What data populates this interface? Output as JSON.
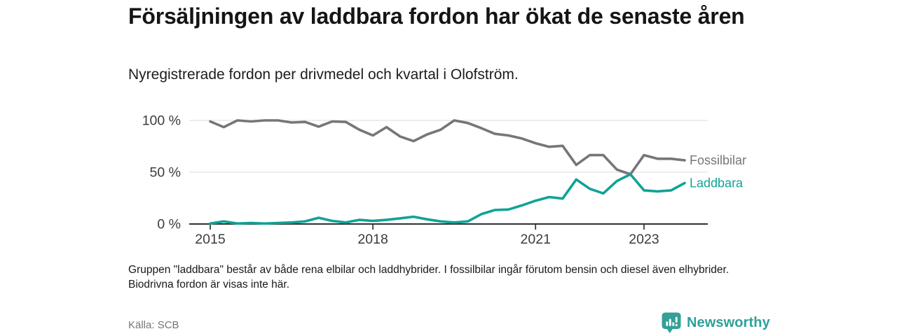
{
  "header": {
    "title": "Försäljningen av laddbara fordon har ökat de senaste åren",
    "subtitle": "Nyregistrerade fordon per drivmedel och kvartal i Olofström."
  },
  "chart_data": {
    "type": "line",
    "title": "Försäljningen av laddbara fordon har ökat de senaste åren",
    "subtitle": "Nyregistrerade fordon per drivmedel och kvartal i Olofström.",
    "x_unit": "quarter",
    "x_quarters": [
      "2015 K1",
      "2015 K2",
      "2015 K3",
      "2015 K4",
      "2016 K1",
      "2016 K2",
      "2016 K3",
      "2016 K4",
      "2017 K1",
      "2017 K2",
      "2017 K3",
      "2017 K4",
      "2018 K1",
      "2018 K2",
      "2018 K3",
      "2018 K4",
      "2019 K1",
      "2019 K2",
      "2019 K3",
      "2019 K4",
      "2020 K1",
      "2020 K2",
      "2020 K3",
      "2020 K4",
      "2021 K1",
      "2021 K2",
      "2021 K3",
      "2021 K4",
      "2022 K1",
      "2022 K2",
      "2022 K3",
      "2022 K4",
      "2023 K1",
      "2023 K2",
      "2023 K3",
      "2023 K4"
    ],
    "series": [
      {
        "name": "Fossilbilar",
        "color": "#76757B",
        "values": [
          99,
          93.5,
          100,
          99,
          100,
          100,
          98,
          98.5,
          94,
          99,
          98.5,
          91,
          85.5,
          93.5,
          84.5,
          80,
          86.5,
          91,
          100,
          97.5,
          92.5,
          87,
          85.5,
          82.5,
          78,
          74.5,
          75.5,
          57,
          66.5,
          66.5,
          52.5,
          48,
          66.5,
          63,
          63,
          61.5
        ]
      },
      {
        "name": "Laddbara",
        "color": "#10A396",
        "values": [
          0.5,
          2.5,
          0.5,
          1,
          0.5,
          1,
          1.5,
          2.5,
          6,
          3,
          1.5,
          4,
          3,
          4,
          5.5,
          7,
          4.5,
          2.5,
          1.5,
          2.5,
          9.5,
          13.5,
          14,
          18,
          22.5,
          26,
          24.5,
          43,
          34,
          29.5,
          41.5,
          48,
          32.5,
          31.5,
          32.5,
          39.5
        ]
      }
    ],
    "ylim": [
      0,
      100
    ],
    "yticks": [
      {
        "value": 0,
        "label": "0 %"
      },
      {
        "value": 50,
        "label": "50 %"
      },
      {
        "value": 100,
        "label": "100 %"
      }
    ],
    "xticks": [
      {
        "quarter_index": 0,
        "label": "2015"
      },
      {
        "quarter_index": 12,
        "label": "2018"
      },
      {
        "quarter_index": 24,
        "label": "2021"
      },
      {
        "quarter_index": 32,
        "label": "2023"
      }
    ],
    "grid": "horizontal",
    "legend_position": "right-of-line-ends"
  },
  "footer": {
    "note": "Gruppen \"laddbara\" består av både rena elbilar och laddhybrider. I fossilbilar ingår förutom bensin och diesel även elhybrider. Biodrivna fordon är visas inte här.",
    "source": "Källa: SCB",
    "logo_text": "Newsworthy"
  },
  "colors": {
    "fossil_line": "#76757B",
    "laddbara_line": "#10A396",
    "brand_teal": "#35A096",
    "axis": "#323232",
    "gridline": "#e2e2e2"
  }
}
